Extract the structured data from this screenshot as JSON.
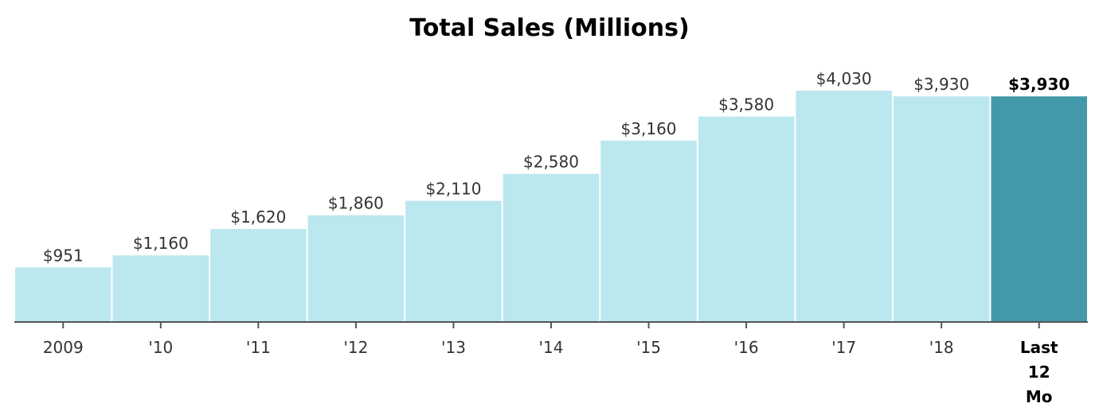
{
  "chart_data": {
    "type": "bar",
    "title": "Total Sales (Millions)",
    "xlabel": "",
    "ylabel": "",
    "categories": [
      "2009",
      "'10",
      "'11",
      "'12",
      "'13",
      "'14",
      "'15",
      "'16",
      "'17",
      "'18",
      "Last 12 Mo"
    ],
    "values": [
      951,
      1160,
      1620,
      1860,
      2110,
      2580,
      3160,
      3580,
      4030,
      3930,
      3930
    ],
    "value_labels": [
      "$951",
      "$1,160",
      "$1,620",
      "$1,860",
      "$2,110",
      "$2,580",
      "$3,160",
      "$3,580",
      "$4,030",
      "$3,930",
      "$3,930"
    ],
    "highlighted_category": "Last 12 Mo",
    "ylim": [
      0,
      4030
    ],
    "grid": false,
    "legend": "none",
    "colors": {
      "bar": "#bbe8ee",
      "highlight": "#4399aa",
      "axis": "#555555",
      "text": "#333333",
      "highlight_text": "#000000"
    }
  }
}
